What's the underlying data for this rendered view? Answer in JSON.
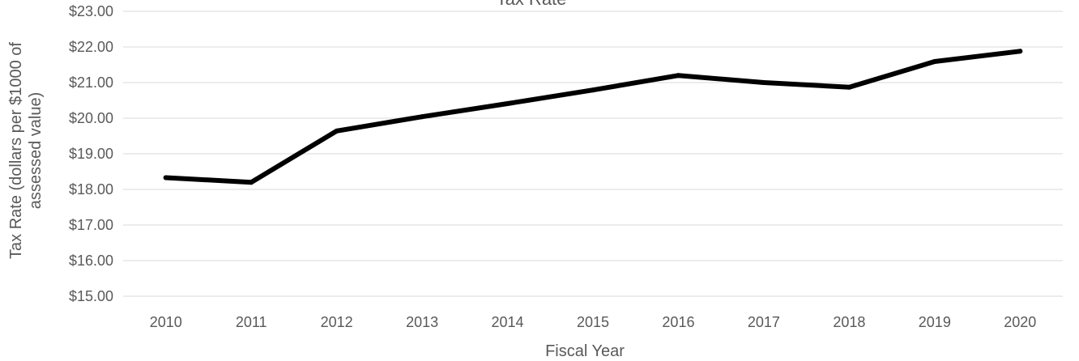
{
  "chart_data": {
    "type": "line",
    "title": "Tax Rate",
    "xlabel": "Fiscal Year",
    "ylabel_lines": [
      "Tax Rate (dollars per $1000 of",
      "assessed value)"
    ],
    "categories": [
      "2010",
      "2011",
      "2012",
      "2013",
      "2014",
      "2015",
      "2016",
      "2017",
      "2018",
      "2019",
      "2020"
    ],
    "series": [
      {
        "values": [
          18.33,
          18.2,
          19.64,
          20.04,
          20.41,
          20.79,
          21.2,
          21.0,
          20.87,
          21.59,
          21.88
        ]
      }
    ],
    "ylim": [
      15,
      23
    ],
    "yticks": [
      15,
      16,
      17,
      18,
      19,
      20,
      21,
      22,
      23
    ],
    "ytick_labels": [
      "$15.00",
      "$16.00",
      "$17.00",
      "$18.00",
      "$19.00",
      "$20.00",
      "$21.00",
      "$22.00",
      "$23.00"
    ],
    "grid": true,
    "line_color": "#000000",
    "grid_color": "#d9d9d9",
    "text_color": "#595959"
  }
}
